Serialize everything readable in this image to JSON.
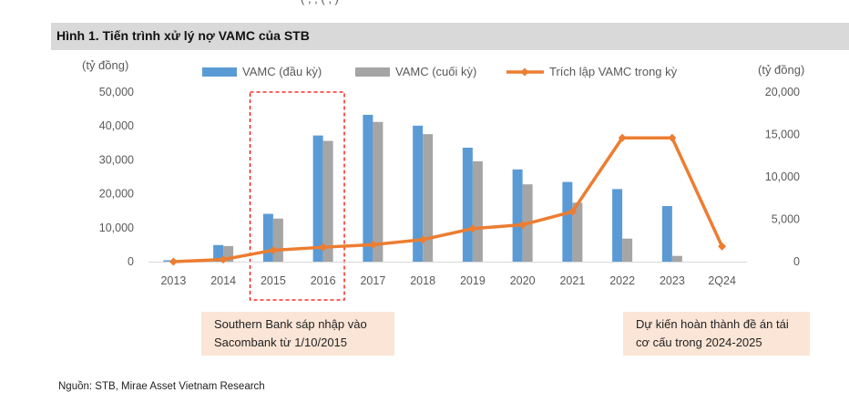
{
  "header": {
    "top_strip_text": "( , ; ( , )",
    "figure_title": "Hình 1. Tiến trình xử lý nợ VAMC của STB"
  },
  "notes": {
    "left": "Southern Bank sáp nhập vào Sacombank từ 1/10/2015",
    "right": "Dự kiến hoàn thành đề án tái cơ cấu trong 2024-2025"
  },
  "source": "Nguồn: STB, Mirae Asset Vietnam Research",
  "colors": {
    "series_start": "#5b9bd5",
    "series_end": "#a5a5a5",
    "series_line": "#ed7d31",
    "highlight_box": "#ff0000",
    "header_bg": "#d9d9d9",
    "note_bg": "#fbe5d6"
  },
  "chart_data": {
    "type": "bar",
    "categories": [
      "2013",
      "2014",
      "2015",
      "2016",
      "2017",
      "2018",
      "2019",
      "2020",
      "2021",
      "2022",
      "2023",
      "2Q24"
    ],
    "series": [
      {
        "name": "VAMC (đầu kỳ)",
        "type": "bar",
        "axis": "left",
        "values": [
          400,
          4900,
          14100,
          37200,
          43300,
          40100,
          33600,
          27200,
          23500,
          21400,
          16400,
          0
        ]
      },
      {
        "name": "VAMC (cuối kỳ)",
        "type": "bar",
        "axis": "left",
        "values": [
          300,
          4600,
          12700,
          35600,
          41200,
          37600,
          29600,
          22800,
          17400,
          6800,
          1700,
          0
        ]
      },
      {
        "name": "Trích lập VAMC trong kỳ",
        "type": "line",
        "axis": "right",
        "values": [
          0,
          250,
          1350,
          1700,
          2000,
          2600,
          3900,
          4350,
          5900,
          14600,
          14600,
          1800
        ]
      }
    ],
    "y_left": {
      "unit": "(tỷ đồng)",
      "ylim": [
        0,
        50000
      ],
      "ticks": [
        "0",
        "10,000",
        "20,000",
        "30,000",
        "40,000",
        "50,000"
      ]
    },
    "y_right": {
      "unit": "(tỷ đồng)",
      "ylim": [
        0,
        20000
      ],
      "ticks": [
        "0",
        "5,000",
        "10,000",
        "15,000",
        "20,000"
      ]
    },
    "grid": false,
    "legend_position": "top",
    "highlight_categories": [
      "2015",
      "2016"
    ]
  }
}
